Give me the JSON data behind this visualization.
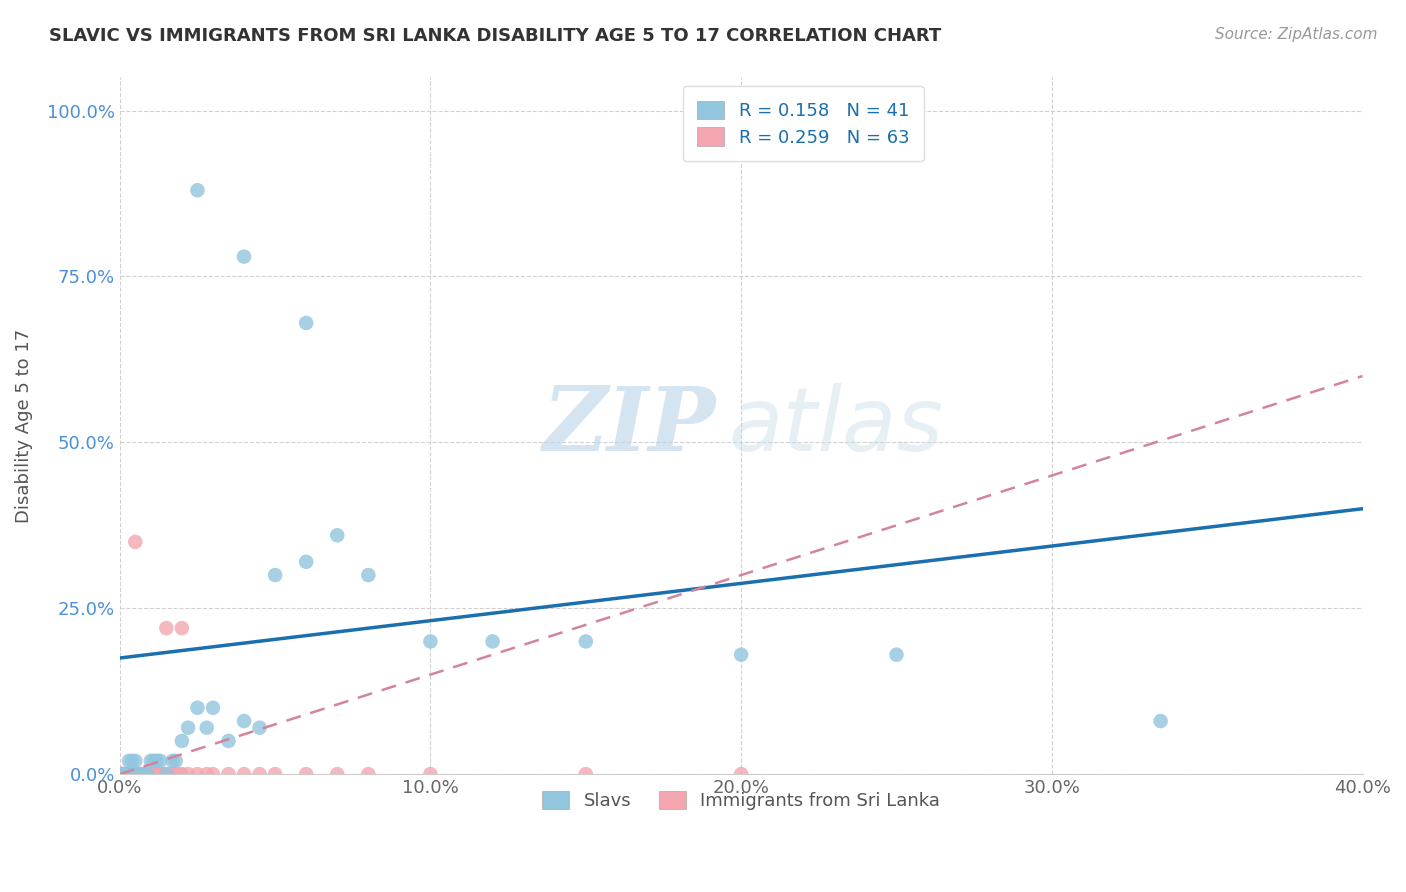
{
  "title": "SLAVIC VS IMMIGRANTS FROM SRI LANKA DISABILITY AGE 5 TO 17 CORRELATION CHART",
  "source": "Source: ZipAtlas.com",
  "ylabel": "Disability Age 5 to 17",
  "xlim": [
    0.0,
    0.4
  ],
  "ylim": [
    0.0,
    1.05
  ],
  "xticks": [
    0.0,
    0.1,
    0.2,
    0.3,
    0.4
  ],
  "xticklabels": [
    "0.0%",
    "10.0%",
    "20.0%",
    "30.0%",
    "40.0%"
  ],
  "yticks": [
    0.0,
    0.25,
    0.5,
    0.75,
    1.0
  ],
  "yticklabels": [
    "0.0%",
    "25.0%",
    "50.0%",
    "75.0%",
    "100.0%"
  ],
  "slavs_color": "#92c5de",
  "sri_lanka_color": "#f4a6b0",
  "slavs_line_color": "#1a6faf",
  "sri_lanka_line_color": "#d4849a",
  "watermark_zip": "ZIP",
  "watermark_atlas": "atlas",
  "slavs_R": 0.158,
  "slavs_N": 41,
  "sri_lanka_R": 0.259,
  "sri_lanka_N": 63,
  "slavs_x": [
    0.001,
    0.001,
    0.002,
    0.002,
    0.003,
    0.003,
    0.004,
    0.005,
    0.005,
    0.006,
    0.007,
    0.008,
    0.009,
    0.01,
    0.011,
    0.012,
    0.013,
    0.015,
    0.017,
    0.018,
    0.02,
    0.022,
    0.025,
    0.028,
    0.03,
    0.035,
    0.04,
    0.045,
    0.05,
    0.06,
    0.07,
    0.08,
    0.1,
    0.12,
    0.15,
    0.2,
    0.25,
    0.335,
    0.025,
    0.04,
    0.06
  ],
  "slavs_y": [
    0.0,
    0.0,
    0.0,
    0.0,
    0.0,
    0.02,
    0.02,
    0.0,
    0.02,
    0.0,
    0.0,
    0.0,
    0.0,
    0.02,
    0.02,
    0.02,
    0.02,
    0.0,
    0.02,
    0.02,
    0.05,
    0.07,
    0.1,
    0.07,
    0.1,
    0.05,
    0.08,
    0.07,
    0.3,
    0.32,
    0.36,
    0.3,
    0.2,
    0.2,
    0.2,
    0.18,
    0.18,
    0.08,
    0.88,
    0.78,
    0.68
  ],
  "sri_lanka_x": [
    0.0,
    0.0,
    0.0,
    0.0,
    0.0,
    0.0,
    0.0,
    0.0,
    0.0,
    0.0,
    0.0,
    0.0,
    0.0,
    0.001,
    0.001,
    0.001,
    0.002,
    0.002,
    0.002,
    0.003,
    0.003,
    0.003,
    0.004,
    0.004,
    0.005,
    0.005,
    0.005,
    0.006,
    0.006,
    0.007,
    0.007,
    0.008,
    0.008,
    0.009,
    0.01,
    0.01,
    0.011,
    0.012,
    0.013,
    0.014,
    0.015,
    0.016,
    0.017,
    0.018,
    0.019,
    0.02,
    0.022,
    0.025,
    0.028,
    0.03,
    0.035,
    0.04,
    0.045,
    0.05,
    0.06,
    0.07,
    0.08,
    0.1,
    0.15,
    0.2,
    0.005,
    0.015,
    0.02
  ],
  "sri_lanka_y": [
    0.0,
    0.0,
    0.0,
    0.0,
    0.0,
    0.0,
    0.0,
    0.0,
    0.0,
    0.0,
    0.0,
    0.0,
    0.0,
    0.0,
    0.0,
    0.0,
    0.0,
    0.0,
    0.0,
    0.0,
    0.0,
    0.0,
    0.0,
    0.0,
    0.0,
    0.0,
    0.0,
    0.0,
    0.0,
    0.0,
    0.0,
    0.0,
    0.0,
    0.0,
    0.0,
    0.0,
    0.0,
    0.0,
    0.0,
    0.0,
    0.0,
    0.0,
    0.0,
    0.0,
    0.0,
    0.0,
    0.0,
    0.0,
    0.0,
    0.0,
    0.0,
    0.0,
    0.0,
    0.0,
    0.0,
    0.0,
    0.0,
    0.0,
    0.0,
    0.0,
    0.35,
    0.22,
    0.22
  ],
  "blue_line_x0": 0.0,
  "blue_line_y0": 0.175,
  "blue_line_x1": 0.4,
  "blue_line_y1": 0.4,
  "pink_line_x0": 0.0,
  "pink_line_y0": 0.0,
  "pink_line_x1": 0.4,
  "pink_line_y1": 0.6
}
